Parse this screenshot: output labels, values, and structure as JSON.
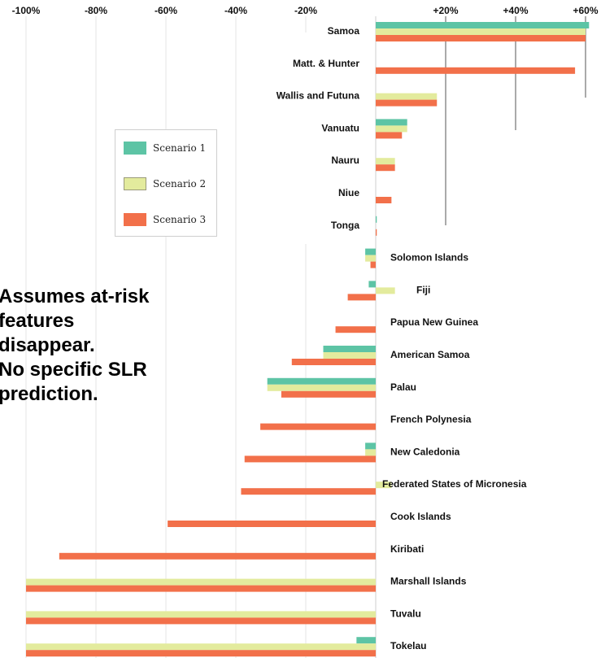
{
  "chart_data": {
    "type": "bar",
    "orientation": "horizontal",
    "x_ticks": [
      "-100%",
      "-80%",
      "-60%",
      "-40%",
      "-20%",
      "+20%",
      "+40%",
      "+60%"
    ],
    "xlim": [
      -100,
      62
    ],
    "series": [
      {
        "name": "Scenario 1",
        "color": "#5dc4a5",
        "values": [
          61,
          0,
          0,
          9,
          0,
          0,
          0.3,
          -3,
          -2,
          0,
          -15,
          -31,
          0,
          -3,
          0,
          0,
          0,
          0,
          0,
          -5.5
        ]
      },
      {
        "name": "Scenario 2",
        "color": "#e3eb9d",
        "values": [
          60,
          0,
          17.5,
          9,
          5.5,
          0,
          0,
          -3,
          5.5,
          0,
          -15,
          -31,
          0,
          -3,
          4.5,
          0,
          0,
          -100,
          -100,
          -100
        ]
      },
      {
        "name": "Scenario 3",
        "color": "#f2704a",
        "values": [
          60,
          57,
          17.5,
          7.5,
          5.5,
          4.5,
          0.3,
          -1.5,
          -8,
          -11.5,
          -24,
          -27,
          -33,
          -37.5,
          -38.5,
          -59.5,
          -90.5,
          -100,
          -100,
          -100
        ]
      }
    ],
    "categories": [
      "Samoa",
      "Matt. & Hunter",
      "Wallis and Futuna",
      "Vanuatu",
      "Nauru",
      "Niue",
      "Tonga",
      "Solomon Islands",
      "Fiji",
      "Papua New Guinea",
      "American Samoa",
      "Palau",
      "French Polynesia",
      "New Caledonia",
      "Federated States of Micronesia",
      "Cook Islands",
      "Kiribati",
      "Marshall Islands",
      "Tuvalu",
      "Tokelau"
    ],
    "legend_position": "left",
    "gridlines": true
  },
  "note": {
    "lines": [
      "Assumes at-risk",
      "features",
      "disappear.",
      "No specific SLR",
      "prediction."
    ]
  }
}
